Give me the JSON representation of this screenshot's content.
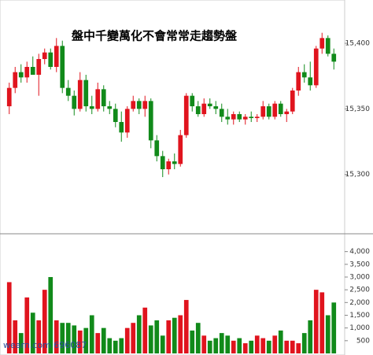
{
  "chart_data": [
    {
      "type": "candlestick",
      "title": "盤中千變萬化不會常常走趨勢盤",
      "open": [
        15352,
        15366,
        15378,
        15374,
        15382,
        15376,
        15388,
        15393,
        15382,
        15398,
        15366,
        15360,
        15350,
        15372,
        15352,
        15350,
        15365,
        15352,
        15350,
        15340,
        15332,
        15350,
        15356,
        15350,
        15356,
        15326,
        15314,
        15304,
        15310,
        15308,
        15330,
        15360,
        15352,
        15346,
        15354,
        15352,
        15350,
        15344,
        15342,
        15346,
        15342,
        15344,
        15343,
        15344,
        15352,
        15344,
        15354,
        15346,
        15348,
        15364,
        15378,
        15374,
        15368,
        15396,
        15404,
        15392
      ],
      "high": [
        15370,
        15382,
        15384,
        15386,
        15390,
        15392,
        15396,
        15396,
        15404,
        15402,
        15372,
        15364,
        15378,
        15376,
        15360,
        15370,
        15368,
        15356,
        15354,
        15348,
        15352,
        15360,
        15358,
        15360,
        15358,
        15330,
        15318,
        15312,
        15316,
        15334,
        15362,
        15362,
        15356,
        15358,
        15358,
        15356,
        15354,
        15350,
        15348,
        15348,
        15346,
        15348,
        15346,
        15356,
        15354,
        15356,
        15356,
        15350,
        15366,
        15382,
        15384,
        15386,
        15398,
        15408,
        15406,
        15396
      ],
      "low": [
        15346,
        15362,
        15370,
        15370,
        15376,
        15360,
        15384,
        15380,
        15378,
        15362,
        15356,
        15345,
        15348,
        15348,
        15346,
        15348,
        15348,
        15346,
        15336,
        15325,
        15328,
        15348,
        15346,
        15344,
        15320,
        15310,
        15298,
        15300,
        15304,
        15306,
        15328,
        15348,
        15344,
        15344,
        15350,
        15346,
        15340,
        15338,
        15338,
        15340,
        15338,
        15340,
        15340,
        15342,
        15342,
        15342,
        15344,
        15340,
        15346,
        15360,
        15370,
        15364,
        15366,
        15392,
        15390,
        15380
      ],
      "close": [
        15366,
        15378,
        15374,
        15382,
        15376,
        15388,
        15393,
        15382,
        15398,
        15366,
        15360,
        15350,
        15372,
        15352,
        15350,
        15365,
        15352,
        15350,
        15340,
        15332,
        15350,
        15356,
        15350,
        15356,
        15326,
        15314,
        15304,
        15310,
        15308,
        15330,
        15360,
        15352,
        15346,
        15354,
        15352,
        15350,
        15344,
        15342,
        15346,
        15342,
        15344,
        15343,
        15344,
        15352,
        15344,
        15354,
        15346,
        15348,
        15364,
        15378,
        15374,
        15368,
        15396,
        15404,
        15392,
        15386
      ],
      "up_color": "#e0141e",
      "down_color": "#118a1a",
      "ylim": [
        15256,
        15433
      ],
      "yticks": [
        {
          "value": 15300,
          "label": "15,300"
        },
        {
          "value": 15350,
          "label": "15,350"
        },
        {
          "value": 15400,
          "label": "15,400"
        }
      ]
    },
    {
      "type": "bar",
      "annotation": "wearn.com 696087",
      "values": [
        2800,
        1300,
        800,
        2200,
        1600,
        1300,
        2500,
        3000,
        1300,
        1200,
        1200,
        1100,
        900,
        1000,
        1500,
        800,
        1000,
        600,
        500,
        600,
        1000,
        1200,
        1500,
        1800,
        1100,
        1300,
        700,
        1300,
        1400,
        1500,
        2100,
        900,
        1200,
        700,
        500,
        600,
        800,
        700,
        500,
        600,
        400,
        500,
        700,
        600,
        500,
        700,
        900,
        500,
        500,
        400,
        800,
        1300,
        2500,
        2400,
        1500,
        2000
      ],
      "ylim": [
        0,
        4700
      ],
      "yticks": [
        500,
        {
          "value": 1000,
          "label": "1,000"
        },
        {
          "value": 1500,
          "label": "1,500"
        },
        {
          "value": 2000,
          "label": "2,000"
        },
        {
          "value": 2500,
          "label": "2,500"
        },
        {
          "value": 3000,
          "label": "3,000"
        },
        {
          "value": 3500,
          "label": "3,500"
        },
        {
          "value": 4000,
          "label": "4,000"
        }
      ]
    }
  ]
}
